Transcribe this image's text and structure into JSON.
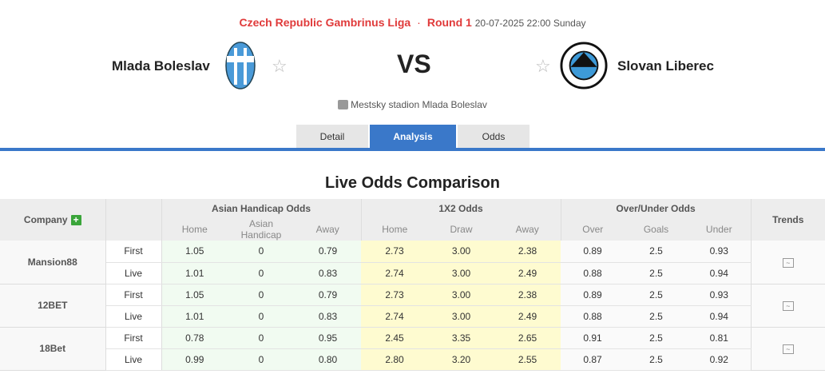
{
  "header": {
    "league": "Czech Republic Gambrinus Liga",
    "round": "Round 1",
    "datetime": "20-07-2025 22:00 Sunday",
    "home": "Mlada Boleslav",
    "away": "Slovan Liberec",
    "vs": "VS",
    "venue": "Mestsky stadion Mlada Boleslav"
  },
  "tabs": [
    "Detail",
    "Analysis",
    "Odds"
  ],
  "section_title": "Live Odds Comparison",
  "table": {
    "company": "Company",
    "ah": "Asian Handicap Odds",
    "x12": "1X2 Odds",
    "ou": "Over/Under Odds",
    "trends": "Trends",
    "sub": [
      "Home",
      "Asian Handicap",
      "Away",
      "Home",
      "Draw",
      "Away",
      "Over",
      "Goals",
      "Under"
    ],
    "rows": [
      {
        "name": "Mansion88",
        "lines": [
          {
            "type": "First",
            "v": [
              "1.05",
              "0",
              "0.79",
              "2.73",
              "3.00",
              "2.38",
              "0.89",
              "2.5",
              "0.93"
            ]
          },
          {
            "type": "Live",
            "v": [
              "1.01",
              "0",
              "0.83",
              "2.74",
              "3.00",
              "2.49",
              "0.88",
              "2.5",
              "0.94"
            ]
          }
        ]
      },
      {
        "name": "12BET",
        "lines": [
          {
            "type": "First",
            "v": [
              "1.05",
              "0",
              "0.79",
              "2.73",
              "3.00",
              "2.38",
              "0.89",
              "2.5",
              "0.93"
            ]
          },
          {
            "type": "Live",
            "v": [
              "1.01",
              "0",
              "0.83",
              "2.74",
              "3.00",
              "2.49",
              "0.88",
              "2.5",
              "0.94"
            ]
          }
        ]
      },
      {
        "name": "18Bet",
        "lines": [
          {
            "type": "First",
            "v": [
              "0.78",
              "0",
              "0.95",
              "2.45",
              "3.35",
              "2.65",
              "0.91",
              "2.5",
              "0.81"
            ]
          },
          {
            "type": "Live",
            "v": [
              "0.99",
              "0",
              "0.80",
              "2.80",
              "3.20",
              "2.55",
              "0.87",
              "2.5",
              "0.92"
            ]
          }
        ]
      }
    ]
  },
  "colors": {
    "accent": "#3a78c9",
    "league": "#e03a3a"
  }
}
